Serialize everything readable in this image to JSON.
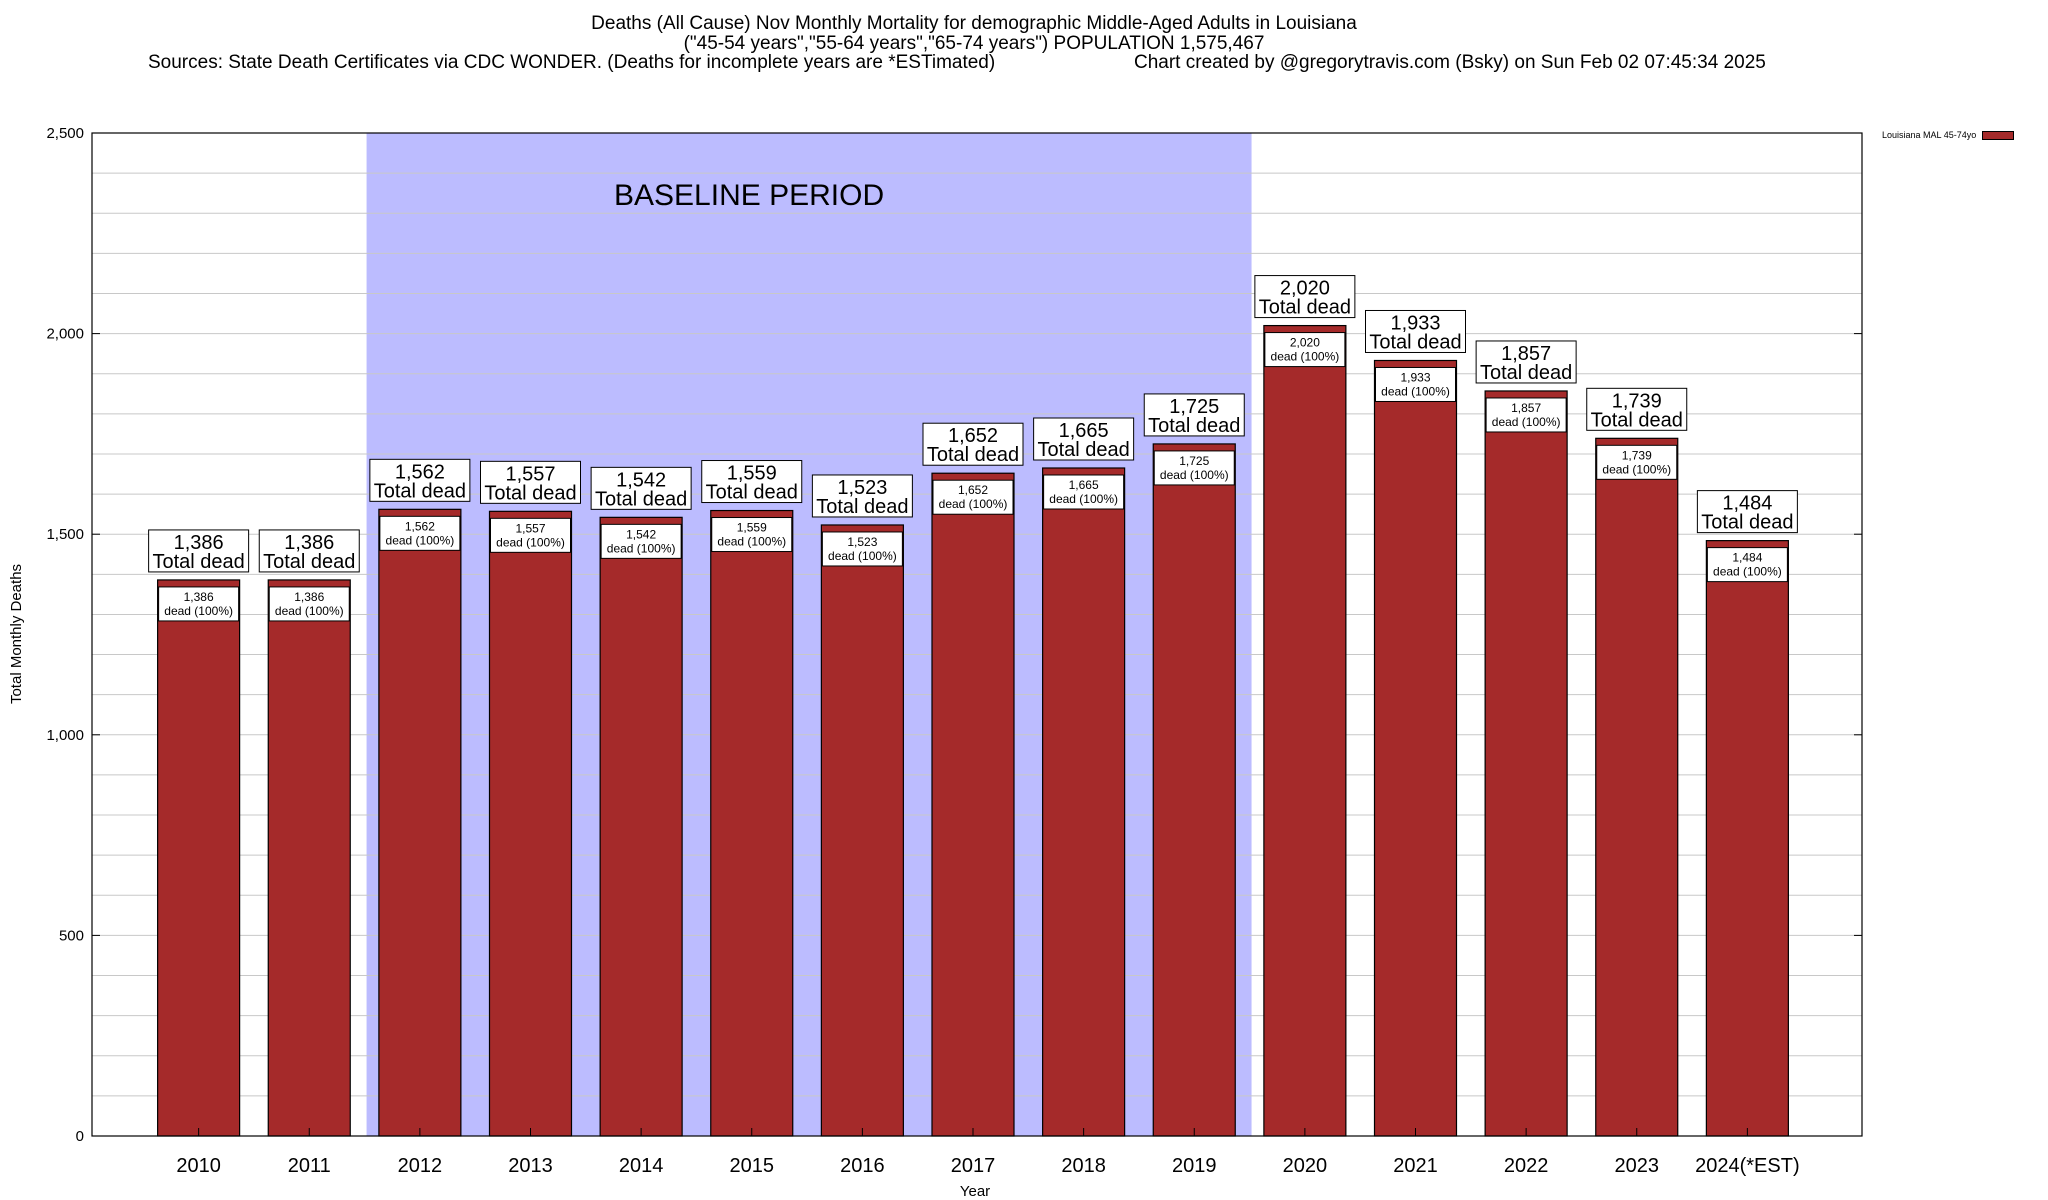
{
  "chart_data": {
    "type": "bar",
    "title_lines": [
      "Deaths (All Cause) Nov Monthly Mortality for demographic Middle-Aged Adults in Louisiana",
      "(\"45-54 years\",\"55-64 years\",\"65-74 years\") POPULATION 1,575,467"
    ],
    "source_text": "Sources: State Death Certificates via CDC WONDER. (Deaths for incomplete years are *ESTimated)",
    "credit_text": "Chart created by @gregorytravis.com (Bsky) on Sun Feb 02 07:45:34 2025",
    "xlabel": "Year",
    "ylabel": "Total Monthly Deaths",
    "ylim": [
      0,
      2500
    ],
    "yticks": [
      0,
      500,
      1000,
      1500,
      2000,
      2500
    ],
    "ytick_labels": [
      "0",
      "500",
      "1,000",
      "1,500",
      "2,000",
      "2,500"
    ],
    "grid": true,
    "categories": [
      "2010",
      "2011",
      "2012",
      "2013",
      "2014",
      "2015",
      "2016",
      "2017",
      "2018",
      "2019",
      "2020",
      "2021",
      "2022",
      "2023",
      "2024(*EST)"
    ],
    "series": [
      {
        "name": "Louisiana MAL 45-74yo",
        "color": "#a52a2a",
        "values": [
          1386,
          1386,
          1562,
          1557,
          1542,
          1559,
          1523,
          1652,
          1665,
          1725,
          2020,
          1933,
          1857,
          1739,
          1484
        ]
      }
    ],
    "value_labels": [
      "1,386",
      "1,386",
      "1,562",
      "1,557",
      "1,542",
      "1,559",
      "1,523",
      "1,652",
      "1,665",
      "1,725",
      "2,020",
      "1,933",
      "1,857",
      "1,739",
      "1,484"
    ],
    "total_label_text": "Total dead",
    "inner_label_text": "dead (100%)",
    "baseline": {
      "label": "BASELINE PERIOD",
      "start_category": "2012",
      "end_category": "2019",
      "color": "#bcbcff"
    },
    "legend_position": "top-right"
  }
}
